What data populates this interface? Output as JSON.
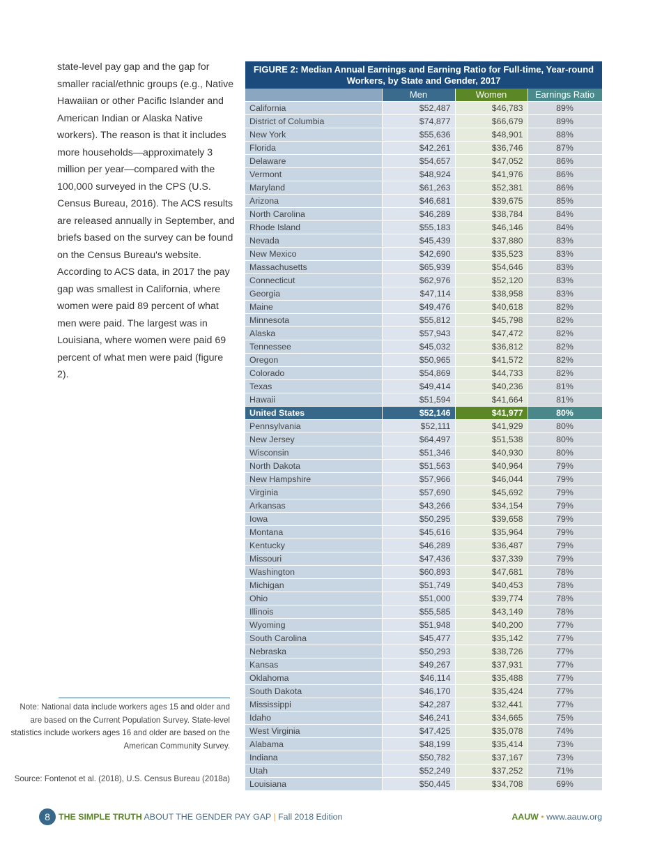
{
  "body_text": "state-level pay gap and the gap for smaller racial/ethnic groups (e.g., Native Hawaiian or other Pacific Islander and American Indian or Alaska Native workers). The reason is that it includes more households—approximately 3 million per year—compared with the 100,000 surveyed in the CPS (U.S. Census Bureau, 2016). The ACS results are released annually in September, and briefs based on the survey can be found on the Census Bureau's website. According to ACS data, in 2017 the pay gap was smallest in California, where women were paid 89 percent of what men were paid. The largest was in Louisiana, where women were paid 69 percent of what men were paid (figure 2).",
  "note": "Note: National data include workers ages 15 and older and are based on the Current Population Survey. State-level statistics include workers ages 16 and older are based on the American Community Survey.",
  "source": "Source: Fontenot et al. (2018), U.S. Census Bureau (2018a)",
  "figure": {
    "title": "FIGURE 2: Median Annual Earnings and Earning Ratio for Full-time, Year-round Workers, by State and Gender, 2017",
    "headers": [
      "",
      "Men",
      "Women",
      "Earnings Ratio"
    ],
    "colors": {
      "title": "#1b4b7c",
      "men": "#3a6a8c",
      "women": "#5b8726",
      "ratio": "#4a8a8c"
    },
    "highlight_row": "United States",
    "rows": [
      [
        "California",
        "$52,487",
        "$46,783",
        "89%"
      ],
      [
        "District of Columbia",
        "$74,877",
        "$66,679",
        "89%"
      ],
      [
        "New York",
        "$55,636",
        "$48,901",
        "88%"
      ],
      [
        "Florida",
        "$42,261",
        "$36,746",
        "87%"
      ],
      [
        "Delaware",
        "$54,657",
        "$47,052",
        "86%"
      ],
      [
        "Vermont",
        "$48,924",
        "$41,976",
        "86%"
      ],
      [
        "Maryland",
        "$61,263",
        "$52,381",
        "86%"
      ],
      [
        "Arizona",
        "$46,681",
        "$39,675",
        "85%"
      ],
      [
        "North Carolina",
        "$46,289",
        "$38,784",
        "84%"
      ],
      [
        "Rhode Island",
        "$55,183",
        "$46,146",
        "84%"
      ],
      [
        "Nevada",
        "$45,439",
        "$37,880",
        "83%"
      ],
      [
        "New Mexico",
        "$42,690",
        "$35,523",
        "83%"
      ],
      [
        "Massachusetts",
        "$65,939",
        "$54,646",
        "83%"
      ],
      [
        "Connecticut",
        "$62,976",
        "$52,120",
        "83%"
      ],
      [
        "Georgia",
        "$47,114",
        "$38,958",
        "83%"
      ],
      [
        "Maine",
        "$49,476",
        "$40,618",
        "82%"
      ],
      [
        "Minnesota",
        "$55,812",
        "$45,798",
        "82%"
      ],
      [
        "Alaska",
        "$57,943",
        "$47,472",
        "82%"
      ],
      [
        "Tennessee",
        "$45,032",
        "$36,812",
        "82%"
      ],
      [
        "Oregon",
        "$50,965",
        "$41,572",
        "82%"
      ],
      [
        "Colorado",
        "$54,869",
        "$44,733",
        "82%"
      ],
      [
        "Texas",
        "$49,414",
        "$40,236",
        "81%"
      ],
      [
        "Hawaii",
        "$51,594",
        "$41,664",
        "81%"
      ],
      [
        "United States",
        "$52,146",
        "$41,977",
        "80%"
      ],
      [
        "Pennsylvania",
        "$52,111",
        "$41,929",
        "80%"
      ],
      [
        "New Jersey",
        "$64,497",
        "$51,538",
        "80%"
      ],
      [
        "Wisconsin",
        "$51,346",
        "$40,930",
        "80%"
      ],
      [
        "North Dakota",
        "$51,563",
        "$40,964",
        "79%"
      ],
      [
        "New Hampshire",
        "$57,966",
        "$46,044",
        "79%"
      ],
      [
        "Virginia",
        "$57,690",
        "$45,692",
        "79%"
      ],
      [
        "Arkansas",
        "$43,266",
        "$34,154",
        "79%"
      ],
      [
        "Iowa",
        "$50,295",
        "$39,658",
        "79%"
      ],
      [
        "Montana",
        "$45,616",
        "$35,964",
        "79%"
      ],
      [
        "Kentucky",
        "$46,289",
        "$36,487",
        "79%"
      ],
      [
        "Missouri",
        "$47,436",
        "$37,339",
        "79%"
      ],
      [
        "Washington",
        "$60,893",
        "$47,681",
        "78%"
      ],
      [
        "Michigan",
        "$51,749",
        "$40,453",
        "78%"
      ],
      [
        "Ohio",
        "$51,000",
        "$39,774",
        "78%"
      ],
      [
        "Illinois",
        "$55,585",
        "$43,149",
        "78%"
      ],
      [
        "Wyoming",
        "$51,948",
        "$40,200",
        "77%"
      ],
      [
        "South Carolina",
        "$45,477",
        "$35,142",
        "77%"
      ],
      [
        "Nebraska",
        "$50,293",
        "$38,726",
        "77%"
      ],
      [
        "Kansas",
        "$49,267",
        "$37,931",
        "77%"
      ],
      [
        "Oklahoma",
        "$46,114",
        "$35,488",
        "77%"
      ],
      [
        "South Dakota",
        "$46,170",
        "$35,424",
        "77%"
      ],
      [
        "Mississippi",
        "$42,287",
        "$32,441",
        "77%"
      ],
      [
        "Idaho",
        "$46,241",
        "$34,665",
        "75%"
      ],
      [
        "West Virginia",
        "$47,425",
        "$35,078",
        "74%"
      ],
      [
        "Alabama",
        "$48,199",
        "$35,414",
        "73%"
      ],
      [
        "Indiana",
        "$50,782",
        "$37,167",
        "73%"
      ],
      [
        "Utah",
        "$52,249",
        "$37,252",
        "71%"
      ],
      [
        "Louisiana",
        "$50,445",
        "$34,708",
        "69%"
      ]
    ]
  },
  "footer": {
    "page_number": "8",
    "title_bold": "THE SIMPLE TRUTH",
    "title_rest": " ABOUT THE GENDER PAY GAP ",
    "separator": "|",
    "edition": " Fall 2018 Edition",
    "org": "AAUW",
    "dot": " • ",
    "url": "www.aauw.org"
  }
}
